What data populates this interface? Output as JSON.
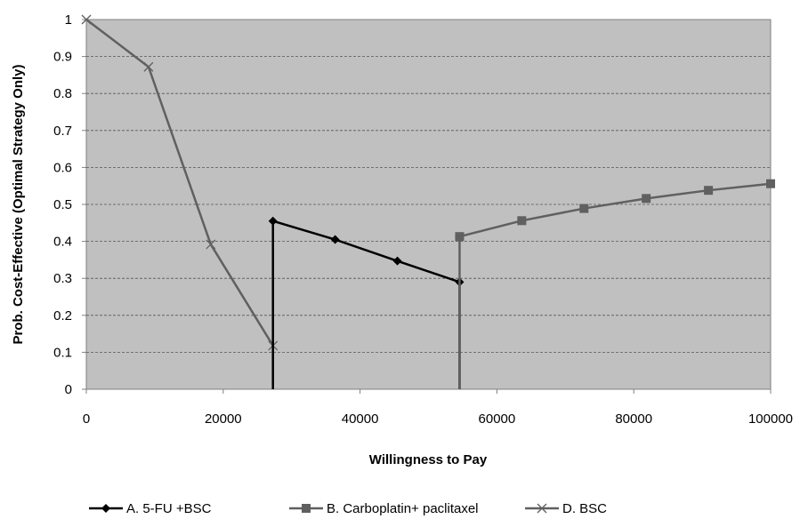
{
  "chart_data": {
    "type": "line",
    "title": "",
    "xlabel": "Willingness to Pay",
    "ylabel": "Prob. Cost-Effective (Optimal Strategy Only)",
    "xlim": [
      0,
      100000
    ],
    "ylim": [
      0,
      1
    ],
    "x_ticks": [
      "0",
      "20000",
      "40000",
      "60000",
      "80000",
      "100000"
    ],
    "y_ticks": [
      "0",
      "0.1",
      "0.2",
      "0.3",
      "0.4",
      "0.5",
      "0.6",
      "0.7",
      "0.8",
      "0.9",
      "1"
    ],
    "grid": "horizontal dashed",
    "legend_position": "bottom",
    "plot_background": "#c0c0c0",
    "series": [
      {
        "name": "A. 5-FU +BSC",
        "color": "#000000",
        "marker": "diamond",
        "x": [
          27273,
          27273,
          36364,
          45455,
          54545,
          54545
        ],
        "y": [
          0,
          0.455,
          0.405,
          0.347,
          0.29,
          0
        ],
        "marker_indices": [
          1,
          2,
          3,
          4
        ]
      },
      {
        "name": "B. Carboplatin+ paclitaxel",
        "color": "#606060",
        "marker": "square",
        "x": [
          54545,
          54545,
          63636,
          72727,
          81818,
          90909,
          100000
        ],
        "y": [
          0,
          0.413,
          0.456,
          0.489,
          0.516,
          0.538,
          0.556
        ],
        "marker_indices": [
          1,
          2,
          3,
          4,
          5,
          6
        ]
      },
      {
        "name": "D.  BSC",
        "color": "#606060",
        "marker": "x",
        "x": [
          0,
          9091,
          18182,
          27273,
          27273
        ],
        "y": [
          1,
          0.872,
          0.392,
          0.118,
          0
        ],
        "marker_indices": [
          0,
          1,
          2,
          3
        ]
      }
    ]
  }
}
